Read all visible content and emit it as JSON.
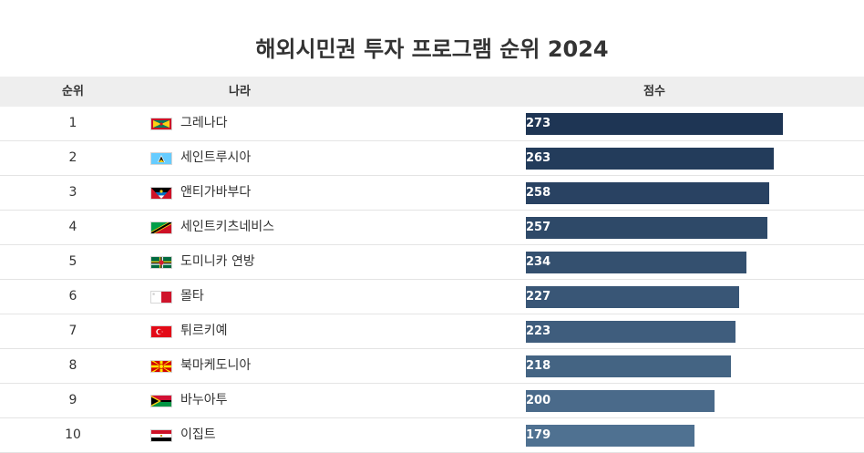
{
  "title": "해외시민권 투자 프로그램 순위 2024",
  "columns": {
    "rank": "순위",
    "country": "나라",
    "score": "점수"
  },
  "colors": {
    "bar_top": "#1e3554",
    "bar_bottom": "#4f7191",
    "header_bg": "#eeeeee"
  },
  "chart_data": {
    "type": "bar",
    "orientation": "horizontal",
    "title": "해외시민권 투자 프로그램 순위 2024",
    "xlim": [
      0,
      300
    ],
    "grid": false,
    "rows": [
      {
        "rank": "1",
        "country": "그레나다",
        "value": 273,
        "flag": "grenada-flag-icon"
      },
      {
        "rank": "2",
        "country": "세인트루시아",
        "value": 263,
        "flag": "saint-lucia-flag-icon"
      },
      {
        "rank": "3",
        "country": "앤티가바부다",
        "value": 258,
        "flag": "antigua-barbuda-flag-icon"
      },
      {
        "rank": "4",
        "country": "세인트키츠네비스",
        "value": 257,
        "flag": "saint-kitts-nevis-flag-icon"
      },
      {
        "rank": "5",
        "country": "도미니카 연방",
        "value": 234,
        "flag": "dominica-flag-icon"
      },
      {
        "rank": "6",
        "country": "몰타",
        "value": 227,
        "flag": "malta-flag-icon"
      },
      {
        "rank": "7",
        "country": "튀르키예",
        "value": 223,
        "flag": "turkey-flag-icon"
      },
      {
        "rank": "8",
        "country": "북마케도니아",
        "value": 218,
        "flag": "north-macedonia-flag-icon"
      },
      {
        "rank": "9",
        "country": "바누아투",
        "value": 200,
        "flag": "vanuatu-flag-icon"
      },
      {
        "rank": "10",
        "country": "이집트",
        "value": 179,
        "flag": "egypt-flag-icon"
      }
    ]
  }
}
